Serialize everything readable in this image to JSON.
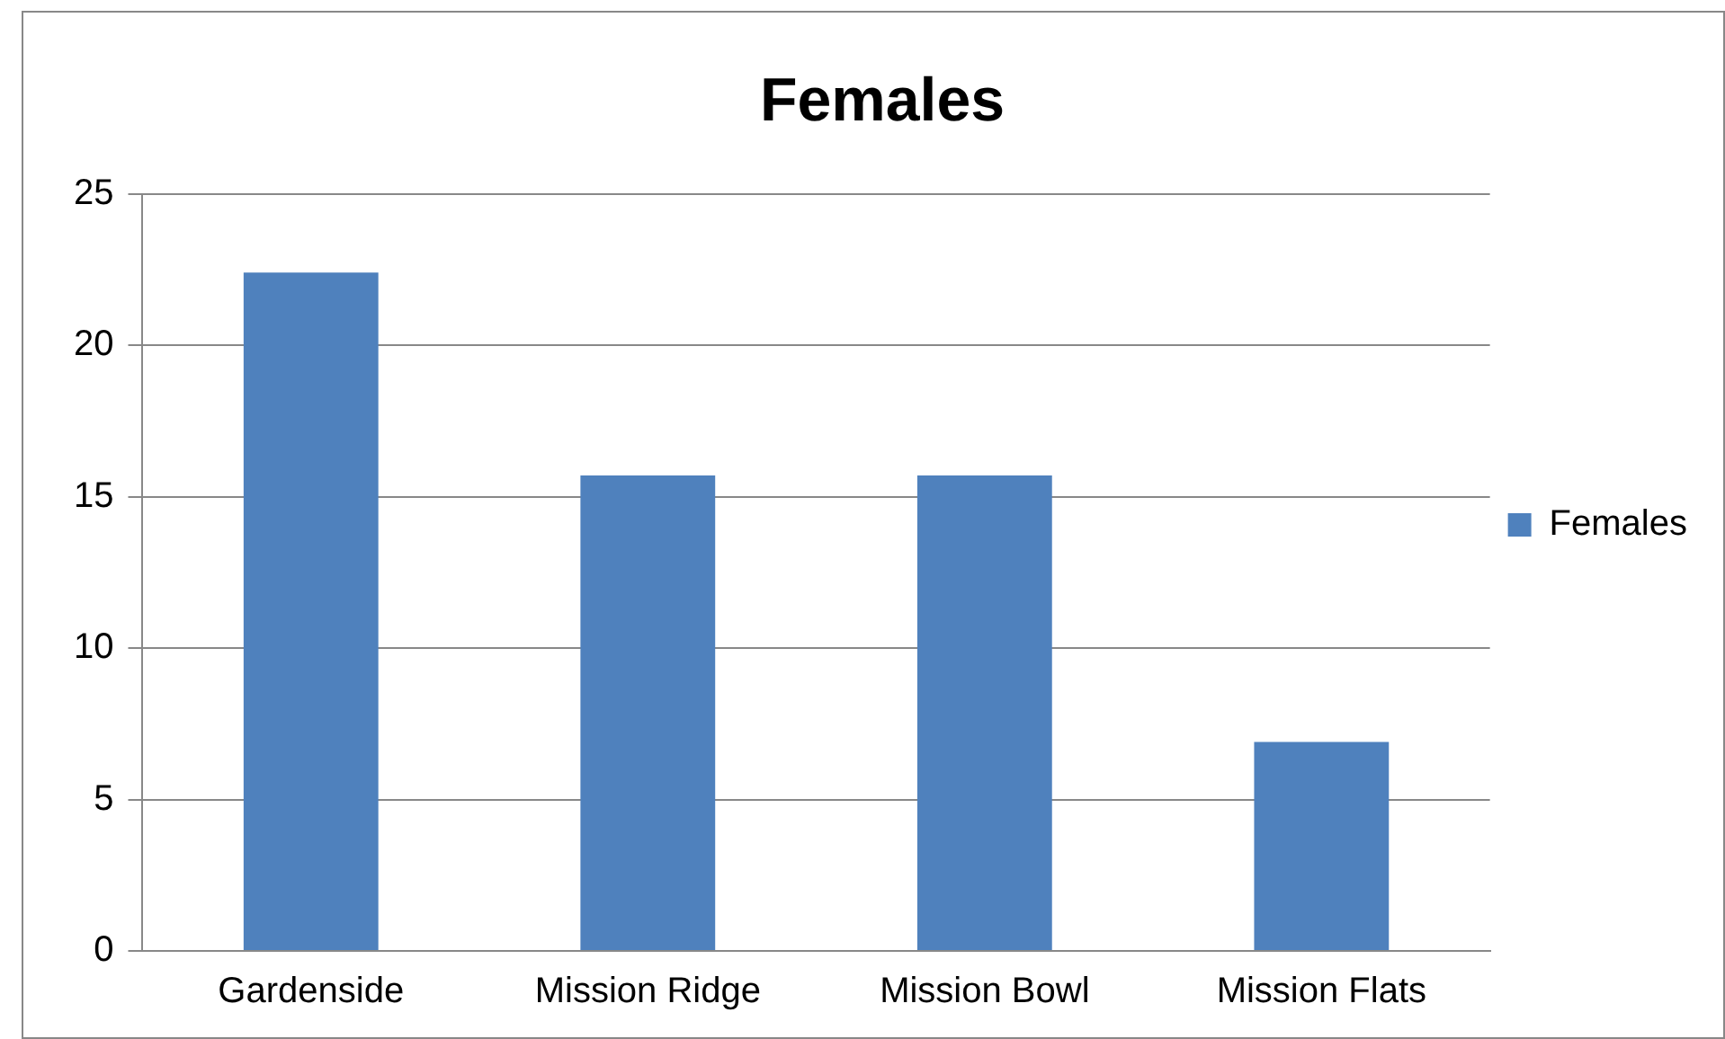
{
  "chart_data": {
    "type": "bar",
    "title": "Females",
    "categories": [
      "Gardenside",
      "Mission Ridge",
      "Mission Bowl",
      "Mission Flats"
    ],
    "series": [
      {
        "name": "Females",
        "color": "#4f81bd",
        "values": [
          22.4,
          15.7,
          15.7,
          6.9
        ]
      }
    ],
    "ylim": [
      0,
      25
    ],
    "yticks": [
      0,
      5,
      10,
      15,
      20,
      25
    ],
    "grid": "y",
    "legend": "right"
  }
}
